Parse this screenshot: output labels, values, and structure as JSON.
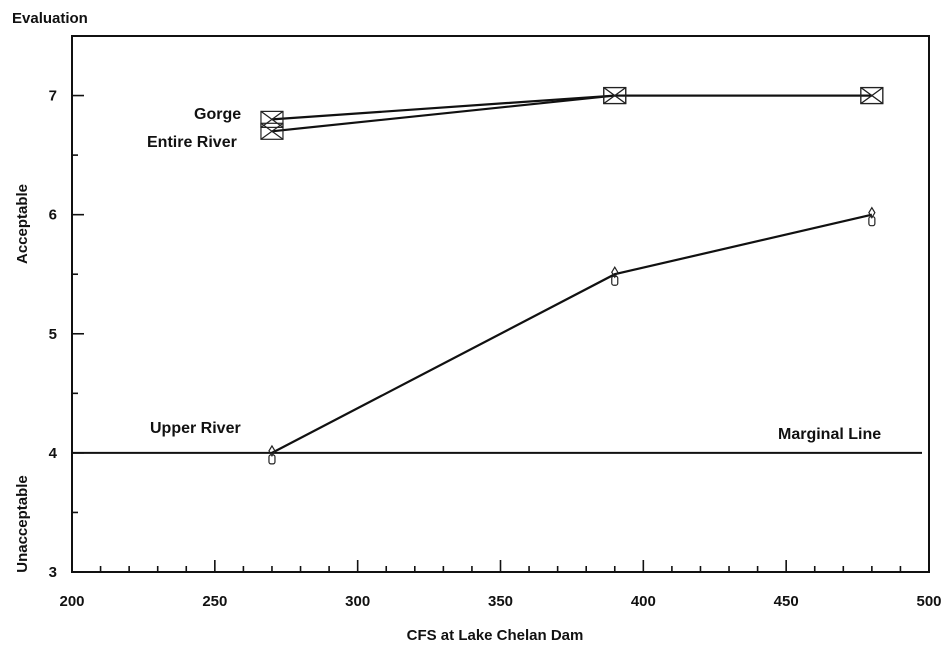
{
  "chart_data": {
    "type": "line",
    "title": "Evaluation",
    "xlabel": "CFS at Lake Chelan Dam",
    "ylabel_upper": "Acceptable",
    "ylabel_lower": "Unacceptable",
    "xlim": [
      200,
      500
    ],
    "ylim": [
      3,
      7.5
    ],
    "xticks": [
      200,
      250,
      300,
      350,
      400,
      450,
      500
    ],
    "yticks": [
      3,
      4,
      5,
      6,
      7
    ],
    "x_minor_step": 10,
    "y_minor_step": 0.5,
    "series": [
      {
        "name": "Gorge",
        "x": [
          270,
          390,
          480
        ],
        "y": [
          6.8,
          7.0,
          7.0
        ],
        "marker": "box"
      },
      {
        "name": "Entire River",
        "x": [
          270,
          390,
          480
        ],
        "y": [
          6.7,
          7.0,
          7.0
        ],
        "marker": "box"
      },
      {
        "name": "Upper River",
        "x": [
          270,
          390,
          480
        ],
        "y": [
          4.0,
          5.5,
          6.0
        ],
        "marker": "diamond"
      }
    ],
    "reference_lines": [
      {
        "label": "Marginal Line",
        "y": 4.0
      }
    ],
    "annotations": [
      "Gorge",
      "Entire River",
      "Upper River",
      "Marginal Line"
    ]
  }
}
